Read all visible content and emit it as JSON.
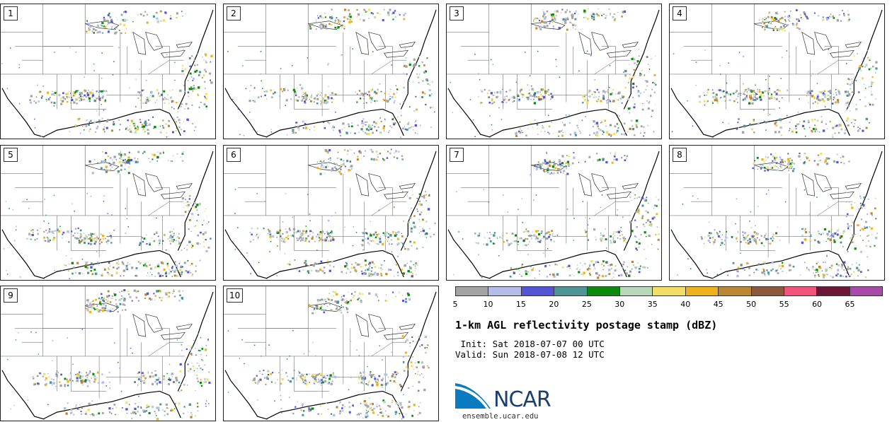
{
  "stamps": [
    {
      "label": "1"
    },
    {
      "label": "2"
    },
    {
      "label": "3"
    },
    {
      "label": "4"
    },
    {
      "label": "5"
    },
    {
      "label": "6"
    },
    {
      "label": "7"
    },
    {
      "label": "8"
    },
    {
      "label": "9"
    },
    {
      "label": "10"
    }
  ],
  "colorbar": {
    "colors": [
      "#a3a3a3",
      "#b3bde8",
      "#5455d6",
      "#4f9596",
      "#0c8a0d",
      "#b8d9b9",
      "#f1de68",
      "#f0b21c",
      "#bc8734",
      "#8b5a3e",
      "#f2547c",
      "#6b1838",
      "#a84ba8"
    ],
    "ticks": [
      "5",
      "10",
      "15",
      "20",
      "25",
      "30",
      "35",
      "40",
      "45",
      "50",
      "55",
      "60",
      "65"
    ]
  },
  "title": "1-km AGL reflectivity postage stamp (dBZ)",
  "init": " Init: Sat 2018-07-07 00 UTC",
  "valid": "Valid: Sun 2018-07-08 12 UTC",
  "logo": {
    "text": "NCAR",
    "colors": {
      "blue": "#0b7bc1",
      "navy": "#1b3f73"
    }
  },
  "site": "ensemble.ucar.edu"
}
